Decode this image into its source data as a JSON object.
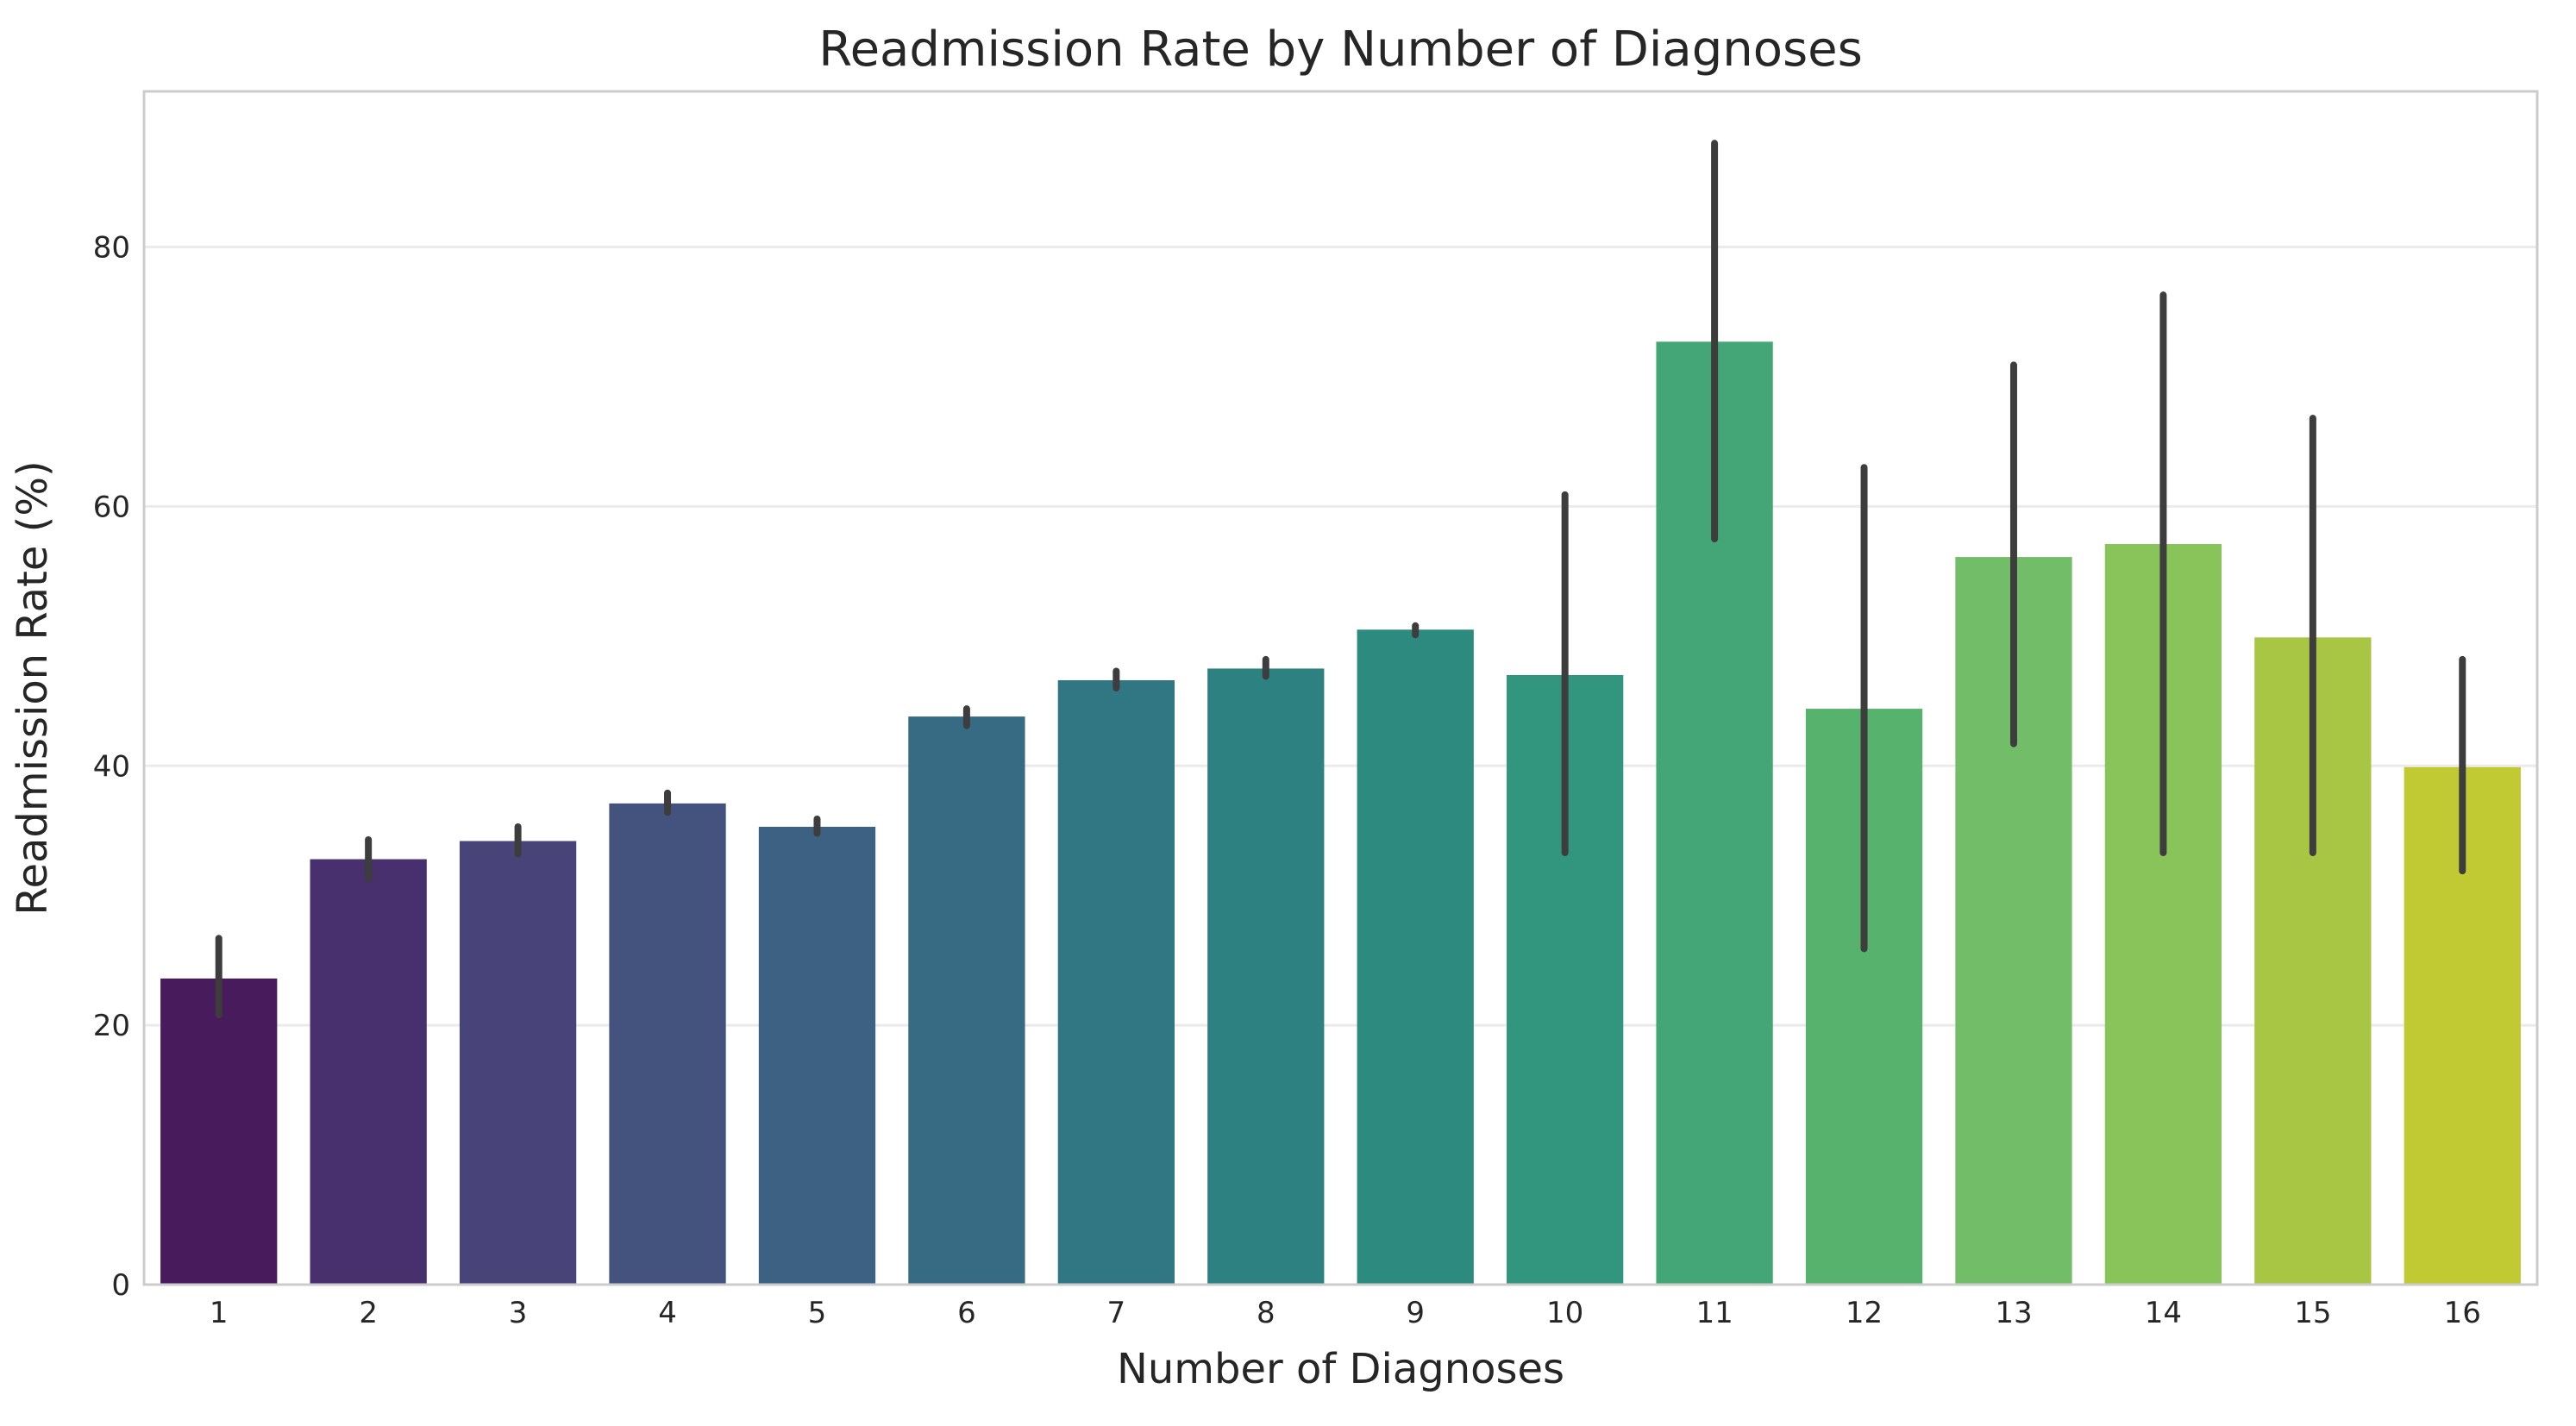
{
  "chart_data": {
    "type": "bar",
    "title": "Readmission Rate by Number of Diagnoses",
    "xlabel": "Number of Diagnoses",
    "ylabel": "Readmission Rate (%)",
    "categories": [
      "1",
      "2",
      "3",
      "4",
      "5",
      "6",
      "7",
      "8",
      "9",
      "10",
      "11",
      "12",
      "13",
      "14",
      "15",
      "16"
    ],
    "values": [
      23.6,
      32.8,
      34.2,
      37.1,
      35.3,
      43.8,
      46.6,
      47.5,
      50.5,
      47.0,
      72.7,
      44.4,
      56.1,
      57.1,
      49.9,
      39.9
    ],
    "error_low": [
      20.8,
      31.3,
      33.2,
      36.4,
      34.8,
      43.1,
      46.0,
      46.9,
      50.1,
      33.3,
      57.5,
      25.9,
      41.7,
      33.3,
      33.3,
      31.9
    ],
    "error_high": [
      26.7,
      34.3,
      35.3,
      37.9,
      35.9,
      44.4,
      47.3,
      48.2,
      50.8,
      60.9,
      88.0,
      63.0,
      70.9,
      76.3,
      66.8,
      48.2
    ],
    "colors": [
      "#481c5c",
      "#482f6d",
      "#484479",
      "#43537e",
      "#3d6182",
      "#376b83",
      "#317783",
      "#2d8180",
      "#2d8a7f",
      "#31967d",
      "#44a676",
      "#56b26d",
      "#72be68",
      "#89c45b",
      "#a8c644",
      "#c1c933"
    ],
    "ylim": [
      0,
      92
    ],
    "yticks": [
      0,
      20,
      40,
      60,
      80
    ],
    "grid": "horizontal",
    "legend": "none"
  }
}
